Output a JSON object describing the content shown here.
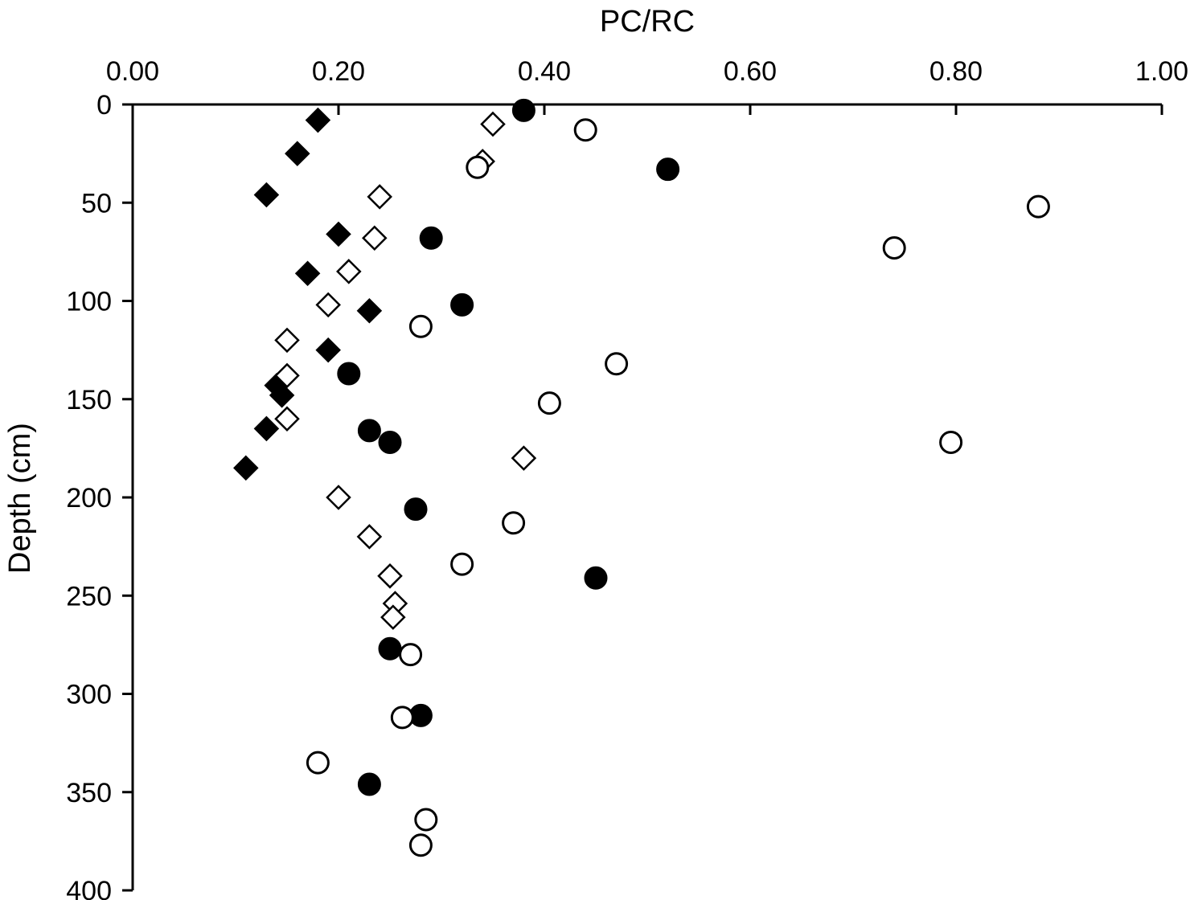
{
  "chart_data": {
    "type": "scatter",
    "title": "PC/RC",
    "xlabel": "PC/RC",
    "ylabel": "Depth (cm)",
    "xlim": [
      0.0,
      1.0
    ],
    "ylim": [
      0,
      400
    ],
    "x_axis_position": "top",
    "y_axis_inverted": true,
    "grid": false,
    "legend": "none",
    "axis_color": "#000000",
    "x_ticks": [
      0.0,
      0.2,
      0.4,
      0.6,
      0.8,
      1.0
    ],
    "x_tick_labels": [
      "0.00",
      "0.20",
      "0.40",
      "0.60",
      "0.80",
      "1.00"
    ],
    "y_ticks": [
      0,
      50,
      100,
      150,
      200,
      250,
      300,
      350,
      400
    ],
    "series": [
      {
        "name": "filled-diamond",
        "marker": "diamond",
        "fill": "#000000",
        "points": [
          [
            0.18,
            8
          ],
          [
            0.16,
            25
          ],
          [
            0.13,
            46
          ],
          [
            0.2,
            66
          ],
          [
            0.17,
            86
          ],
          [
            0.23,
            105
          ],
          [
            0.19,
            125
          ],
          [
            0.14,
            143
          ],
          [
            0.145,
            148
          ],
          [
            0.13,
            165
          ],
          [
            0.11,
            185
          ]
        ]
      },
      {
        "name": "open-diamond",
        "marker": "diamond",
        "fill": "#ffffff",
        "points": [
          [
            0.35,
            10
          ],
          [
            0.34,
            29
          ],
          [
            0.24,
            47
          ],
          [
            0.235,
            68
          ],
          [
            0.21,
            85
          ],
          [
            0.19,
            102
          ],
          [
            0.15,
            120
          ],
          [
            0.15,
            138
          ],
          [
            0.15,
            160
          ],
          [
            0.38,
            180
          ],
          [
            0.2,
            200
          ],
          [
            0.23,
            220
          ],
          [
            0.25,
            240
          ],
          [
            0.255,
            254
          ],
          [
            0.253,
            261
          ]
        ]
      },
      {
        "name": "filled-circle",
        "marker": "circle",
        "fill": "#000000",
        "points": [
          [
            0.38,
            3
          ],
          [
            0.52,
            33
          ],
          [
            0.29,
            68
          ],
          [
            0.32,
            102
          ],
          [
            0.21,
            137
          ],
          [
            0.23,
            166
          ],
          [
            0.25,
            172
          ],
          [
            0.275,
            206
          ],
          [
            0.45,
            241
          ],
          [
            0.25,
            277
          ],
          [
            0.28,
            311
          ],
          [
            0.23,
            346
          ]
        ]
      },
      {
        "name": "open-circle",
        "marker": "circle",
        "fill": "#ffffff",
        "points": [
          [
            0.44,
            13
          ],
          [
            0.335,
            32
          ],
          [
            0.88,
            52
          ],
          [
            0.74,
            73
          ],
          [
            0.28,
            113
          ],
          [
            0.47,
            132
          ],
          [
            0.405,
            152
          ],
          [
            0.795,
            172
          ],
          [
            0.37,
            213
          ],
          [
            0.32,
            234
          ],
          [
            0.27,
            280
          ],
          [
            0.262,
            312
          ],
          [
            0.18,
            335
          ],
          [
            0.285,
            364
          ],
          [
            0.28,
            377
          ]
        ]
      }
    ]
  }
}
